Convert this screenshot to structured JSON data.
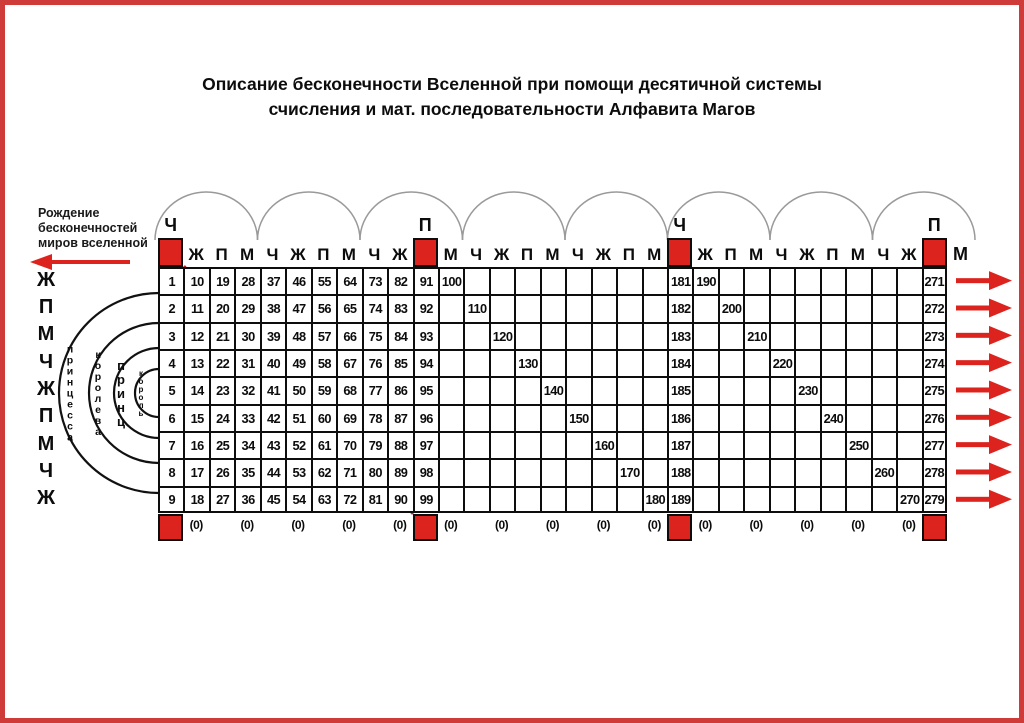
{
  "colors": {
    "red": "#dd231d",
    "frame_red": "#cf3b38",
    "line_red": "#c52129",
    "arc_gray": "#9a9a9a"
  },
  "title": {
    "line1": "Описание бесконечности Вселенной при помощи десятичной системы",
    "line2": "счисления и мат. последовательности Алфавита Магов"
  },
  "note": {
    "lines": [
      "Рождение",
      "бесконечностей",
      "миров вселенной"
    ]
  },
  "left_letters": [
    "Ж",
    "П",
    "М",
    "Ч",
    "Ж",
    "П",
    "М",
    "Ч",
    "Ж"
  ],
  "arc_labels": [
    "принцесса",
    "королева",
    "принц",
    "король"
  ],
  "right_top_letter": "М",
  "table": {
    "zero_label": "(0)",
    "columns": [
      {
        "type": "red",
        "marker": "Ч",
        "values": [
          1,
          2,
          3,
          4,
          5,
          6,
          7,
          8,
          9
        ]
      },
      {
        "type": "letter",
        "header": "Ж",
        "zero": true,
        "values": [
          10,
          11,
          12,
          13,
          14,
          15,
          16,
          17,
          18
        ]
      },
      {
        "type": "letter",
        "header": "П",
        "values": [
          19,
          20,
          21,
          22,
          23,
          24,
          25,
          26,
          27
        ]
      },
      {
        "type": "letter",
        "header": "М",
        "zero": true,
        "values": [
          28,
          29,
          30,
          31,
          32,
          33,
          34,
          35,
          36
        ]
      },
      {
        "type": "letter",
        "header": "Ч",
        "values": [
          37,
          38,
          39,
          40,
          41,
          42,
          43,
          44,
          45
        ]
      },
      {
        "type": "letter",
        "header": "Ж",
        "zero": true,
        "values": [
          46,
          47,
          48,
          49,
          50,
          51,
          52,
          53,
          54
        ]
      },
      {
        "type": "letter",
        "header": "П",
        "values": [
          55,
          56,
          57,
          58,
          59,
          60,
          61,
          62,
          63
        ]
      },
      {
        "type": "letter",
        "header": "М",
        "zero": true,
        "values": [
          64,
          65,
          66,
          67,
          68,
          69,
          70,
          71,
          72
        ]
      },
      {
        "type": "letter",
        "header": "Ч",
        "values": [
          73,
          74,
          75,
          76,
          77,
          78,
          79,
          80,
          81
        ]
      },
      {
        "type": "letter",
        "header": "Ж",
        "zero": true,
        "values": [
          82,
          83,
          84,
          85,
          86,
          87,
          88,
          89,
          90
        ]
      },
      {
        "type": "red",
        "marker": "П",
        "values": [
          91,
          92,
          93,
          94,
          95,
          96,
          97,
          98,
          99
        ]
      },
      {
        "type": "letter",
        "header": "М",
        "zero": true,
        "values": [
          100,
          null,
          null,
          null,
          null,
          null,
          null,
          null,
          null
        ]
      },
      {
        "type": "letter",
        "header": "Ч",
        "values": [
          null,
          110,
          null,
          null,
          null,
          null,
          null,
          null,
          null
        ]
      },
      {
        "type": "letter",
        "header": "Ж",
        "zero": true,
        "values": [
          null,
          null,
          120,
          null,
          null,
          null,
          null,
          null,
          null
        ]
      },
      {
        "type": "letter",
        "header": "П",
        "values": [
          null,
          null,
          null,
          130,
          null,
          null,
          null,
          null,
          null
        ]
      },
      {
        "type": "letter",
        "header": "М",
        "zero": true,
        "values": [
          null,
          null,
          null,
          null,
          140,
          null,
          null,
          null,
          null
        ]
      },
      {
        "type": "letter",
        "header": "Ч",
        "values": [
          null,
          null,
          null,
          null,
          null,
          150,
          null,
          null,
          null
        ]
      },
      {
        "type": "letter",
        "header": "Ж",
        "zero": true,
        "values": [
          null,
          null,
          null,
          null,
          null,
          null,
          160,
          null,
          null
        ]
      },
      {
        "type": "letter",
        "header": "П",
        "values": [
          null,
          null,
          null,
          null,
          null,
          null,
          null,
          170,
          null
        ]
      },
      {
        "type": "letter",
        "header": "М",
        "zero": true,
        "values": [
          null,
          null,
          null,
          null,
          null,
          null,
          null,
          null,
          180
        ]
      },
      {
        "type": "red",
        "marker": "Ч",
        "values": [
          181,
          182,
          183,
          184,
          185,
          186,
          187,
          188,
          189
        ]
      },
      {
        "type": "letter",
        "header": "Ж",
        "zero": true,
        "values": [
          190,
          null,
          null,
          null,
          null,
          null,
          null,
          null,
          null
        ]
      },
      {
        "type": "letter",
        "header": "П",
        "values": [
          null,
          200,
          null,
          null,
          null,
          null,
          null,
          null,
          null
        ]
      },
      {
        "type": "letter",
        "header": "М",
        "zero": true,
        "values": [
          null,
          null,
          210,
          null,
          null,
          null,
          null,
          null,
          null
        ]
      },
      {
        "type": "letter",
        "header": "Ч",
        "values": [
          null,
          null,
          null,
          220,
          null,
          null,
          null,
          null,
          null
        ]
      },
      {
        "type": "letter",
        "header": "Ж",
        "zero": true,
        "values": [
          null,
          null,
          null,
          null,
          230,
          null,
          null,
          null,
          null
        ]
      },
      {
        "type": "letter",
        "header": "П",
        "values": [
          null,
          null,
          null,
          null,
          null,
          240,
          null,
          null,
          null
        ]
      },
      {
        "type": "letter",
        "header": "М",
        "zero": true,
        "values": [
          null,
          null,
          null,
          null,
          null,
          null,
          250,
          null,
          null
        ]
      },
      {
        "type": "letter",
        "header": "Ч",
        "values": [
          null,
          null,
          null,
          null,
          null,
          null,
          null,
          260,
          null
        ]
      },
      {
        "type": "letter",
        "header": "Ж",
        "zero": true,
        "values": [
          null,
          null,
          null,
          null,
          null,
          null,
          null,
          null,
          270
        ]
      },
      {
        "type": "red",
        "marker": "П",
        "values": [
          271,
          272,
          273,
          274,
          275,
          276,
          277,
          278,
          279
        ]
      }
    ]
  }
}
